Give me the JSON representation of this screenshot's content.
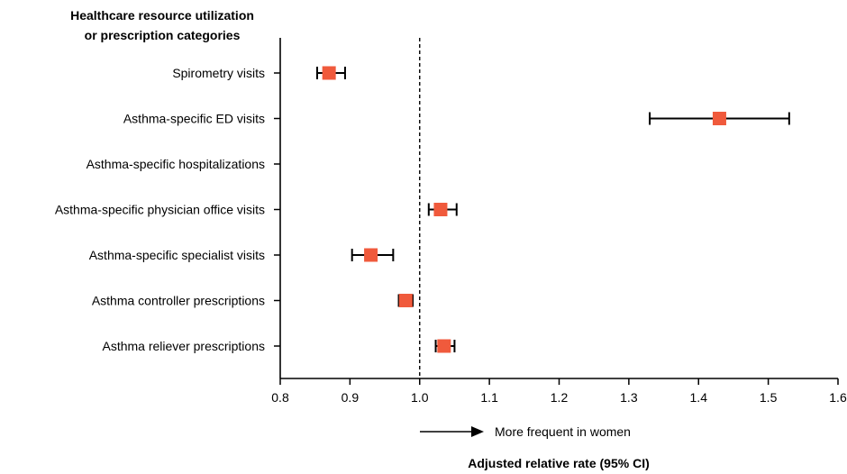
{
  "chart_data": {
    "type": "forest",
    "title_lines": [
      "Healthcare resource utilization",
      "or prescription categories"
    ],
    "xlabel": "Adjusted relative rate (95% CI)",
    "xlim": [
      0.8,
      1.6
    ],
    "xticks": [
      0.8,
      0.9,
      1.0,
      1.1,
      1.2,
      1.3,
      1.4,
      1.5,
      1.6
    ],
    "xtick_labels": [
      "0.8",
      "0.9",
      "1.0",
      "1.1",
      "1.2",
      "1.3",
      "1.4",
      "1.5",
      "1.6"
    ],
    "reference_line": 1.0,
    "direction_note": "More frequent in women",
    "marker_color": "#f05a3c",
    "rows": [
      {
        "label": "Spirometry visits",
        "estimate": 0.87,
        "ci_low": 0.853,
        "ci_high": 0.893
      },
      {
        "label": "Asthma-specific ED visits",
        "estimate": 1.43,
        "ci_low": 1.33,
        "ci_high": 1.53
      },
      {
        "label": "Asthma-specific hospitalizations",
        "estimate": null,
        "ci_low": null,
        "ci_high": null
      },
      {
        "label": "Asthma-specific physician office visits",
        "estimate": 1.03,
        "ci_low": 1.013,
        "ci_high": 1.053
      },
      {
        "label": "Asthma-specific specialist visits",
        "estimate": 0.93,
        "ci_low": 0.903,
        "ci_high": 0.962
      },
      {
        "label": "Asthma controller prescriptions",
        "estimate": 0.98,
        "ci_low": 0.97,
        "ci_high": 0.99
      },
      {
        "label": "Asthma reliever prescriptions",
        "estimate": 1.035,
        "ci_low": 1.023,
        "ci_high": 1.05
      }
    ]
  }
}
